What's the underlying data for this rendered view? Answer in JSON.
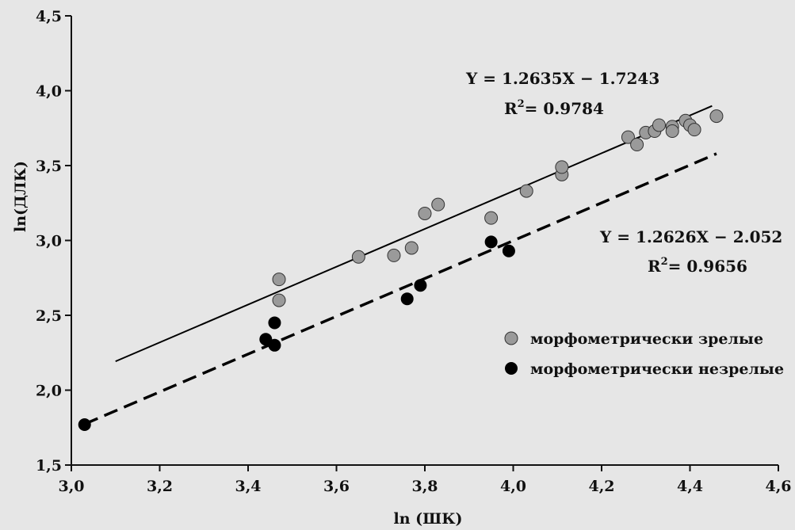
{
  "chart_data": {
    "type": "scatter",
    "xlabel": "ln (ШК)",
    "ylabel": "ln(ДЛК)",
    "xlim": [
      3.0,
      4.6
    ],
    "ylim": [
      1.5,
      4.5
    ],
    "xticks": [
      "3,0",
      "3,2",
      "3,4",
      "3,6",
      "3,8",
      "4,0",
      "4,2",
      "4,4",
      "4,6"
    ],
    "yticks": [
      "1,5",
      "2,0",
      "2,5",
      "3,0",
      "3,5",
      "4,0",
      "4,5"
    ],
    "grid": false,
    "legend_position": "bottom-right",
    "colors": {
      "mature": "#9a9a9a",
      "immature": "#000000",
      "line": "#000000"
    },
    "series": [
      {
        "name": "морфометрически зрелые",
        "marker": "grey-circle",
        "fit": {
          "slope": 1.2635,
          "intercept": -1.7243,
          "style": "solid",
          "x_range": [
            3.1,
            4.45
          ],
          "equation": "Y = 1.2635X − 1.7243",
          "r2_prefix": "R",
          "r2_sup": "2",
          "r2_value": "= 0.9784"
        },
        "x": [
          3.47,
          3.47,
          3.65,
          3.73,
          3.77,
          3.8,
          3.83,
          3.95,
          4.03,
          4.11,
          4.11,
          4.26,
          4.28,
          4.3,
          4.32,
          4.33,
          4.36,
          4.36,
          4.39,
          4.4,
          4.41,
          4.46
        ],
        "y": [
          2.6,
          2.74,
          2.89,
          2.9,
          2.95,
          3.18,
          3.24,
          3.15,
          3.33,
          3.44,
          3.49,
          3.69,
          3.64,
          3.72,
          3.73,
          3.77,
          3.76,
          3.73,
          3.8,
          3.77,
          3.74,
          3.83
        ]
      },
      {
        "name": "морфометрически незрелые",
        "marker": "black-circle",
        "fit": {
          "slope": 1.2626,
          "intercept": -2.052,
          "style": "dashed",
          "x_range": [
            3.03,
            4.46
          ],
          "equation": "Y = 1.2626X − 2.052",
          "r2_prefix": "R",
          "r2_sup": "2",
          "r2_value": "= 0.9656"
        },
        "x": [
          3.03,
          3.44,
          3.46,
          3.46,
          3.76,
          3.79,
          3.95,
          3.99
        ],
        "y": [
          1.77,
          2.34,
          2.3,
          2.45,
          2.61,
          2.7,
          2.99,
          2.93
        ]
      }
    ]
  }
}
